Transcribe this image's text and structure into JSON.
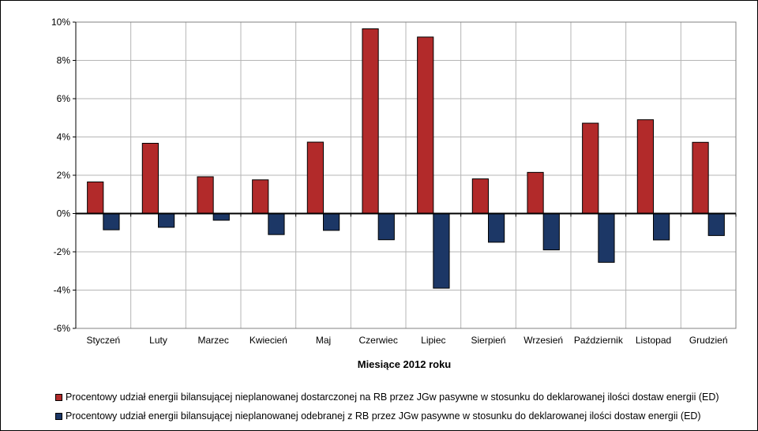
{
  "chart_data": {
    "type": "bar",
    "categories": [
      "Styczeń",
      "Luty",
      "Marzec",
      "Kwiecień",
      "Maj",
      "Czerwiec",
      "Lipiec",
      "Sierpień",
      "Wrzesień",
      "Październik",
      "Listopad",
      "Grudzień"
    ],
    "series": [
      {
        "name": "Procentowy udział energii bilansującej nieplanowanej dostarczonej na RB przez JGw pasywne w stosunku do deklarowanej ilości dostaw energii (ED)",
        "color": "#b22a2a",
        "values": [
          1.65,
          3.67,
          1.92,
          1.76,
          3.73,
          9.65,
          9.22,
          1.81,
          2.15,
          4.72,
          4.9,
          3.72
        ]
      },
      {
        "name": "Procentowy udział energii bilansującej nieplanowanej odebranej z RB przez JGw pasywne w stosunku do deklarowanej ilości dostaw energii (ED)",
        "color": "#1c3766",
        "values": [
          -0.85,
          -0.72,
          -0.35,
          -1.1,
          -0.88,
          -1.37,
          -3.9,
          -1.5,
          -1.9,
          -2.55,
          -1.38,
          -1.15
        ]
      }
    ],
    "xlabel": "Miesiące 2012 roku",
    "ylabel": "",
    "ylim": [
      -6,
      10
    ],
    "yticks": [
      -6,
      -4,
      -2,
      0,
      2,
      4,
      6,
      8,
      10
    ],
    "ytick_format": "percent",
    "grid": true,
    "legend_position": "bottom"
  }
}
